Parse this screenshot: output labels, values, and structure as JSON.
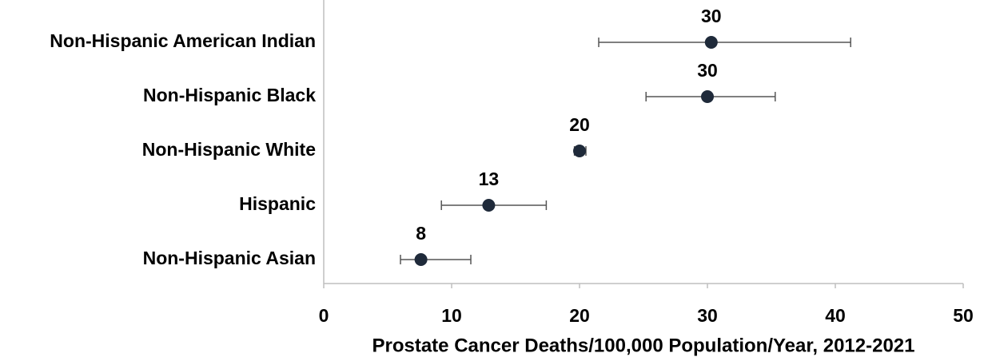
{
  "chart_data": {
    "type": "dot",
    "xlabel": "Prostate Cancer Deaths/100,000 Population/Year, 2012-2021",
    "categories": [
      "Non-Hispanic American Indian",
      "Non-Hispanic Black",
      "Non-Hispanic White",
      "Hispanic",
      "Non-Hispanic Asian"
    ],
    "values": [
      30.3,
      30.0,
      20.0,
      12.9,
      7.6
    ],
    "value_labels": [
      "30",
      "30",
      "20",
      "13",
      "8"
    ],
    "lower": [
      21.5,
      25.2,
      19.6,
      9.2,
      6.0
    ],
    "upper": [
      41.2,
      35.3,
      20.5,
      17.4,
      11.5
    ],
    "color": "#1f2a3a",
    "error_color": "#555555",
    "xlim": [
      0,
      50
    ],
    "xticks": [
      0,
      10,
      20,
      30,
      40,
      50
    ]
  }
}
